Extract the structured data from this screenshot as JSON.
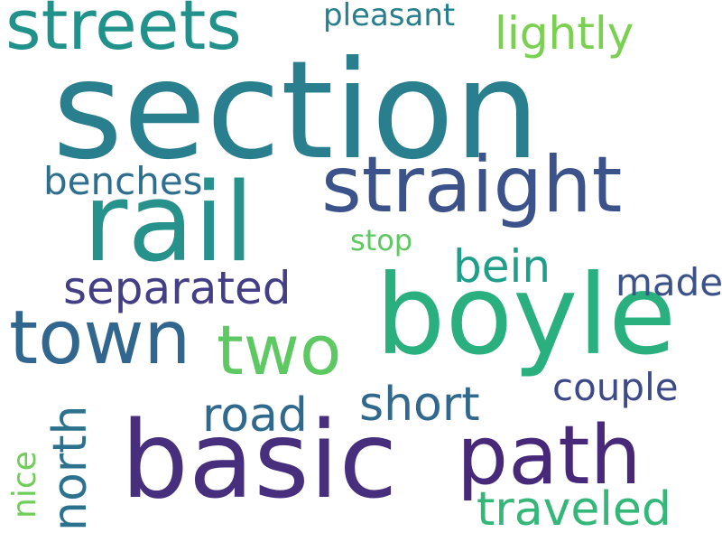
{
  "words": {
    "section": {
      "text": "section",
      "color": "#2a7f8e"
    },
    "rail": {
      "text": "rail",
      "color": "#27918b"
    },
    "boyle": {
      "text": "boyle",
      "color": "#2ab07f"
    },
    "basic": {
      "text": "basic",
      "color": "#472f7d"
    },
    "straight": {
      "text": "straight",
      "color": "#3b528b"
    },
    "streets": {
      "text": "streets",
      "color": "#21918c"
    },
    "town": {
      "text": "town",
      "color": "#31668e"
    },
    "path": {
      "text": "path",
      "color": "#482878"
    },
    "two": {
      "text": "two",
      "color": "#5ec962"
    },
    "north": {
      "text": "north",
      "color": "#2c728e"
    },
    "lightly": {
      "text": "lightly",
      "color": "#7ad151"
    },
    "separated": {
      "text": "separated",
      "color": "#433e85"
    },
    "traveled": {
      "text": "traveled",
      "color": "#35b779"
    },
    "road": {
      "text": "road",
      "color": "#30698e"
    },
    "short": {
      "text": "short",
      "color": "#31688e"
    },
    "bein": {
      "text": "bein",
      "color": "#1f9e89"
    },
    "benches": {
      "text": "benches",
      "color": "#2e6e8e"
    },
    "couple": {
      "text": "couple",
      "color": "#3e4989"
    },
    "made": {
      "text": "made",
      "color": "#3b528b"
    },
    "pleasant": {
      "text": "pleasant",
      "color": "#277f8e"
    },
    "nice": {
      "text": "nice",
      "color": "#6ece58"
    },
    "stop": {
      "text": "stop",
      "color": "#5ec962"
    }
  }
}
